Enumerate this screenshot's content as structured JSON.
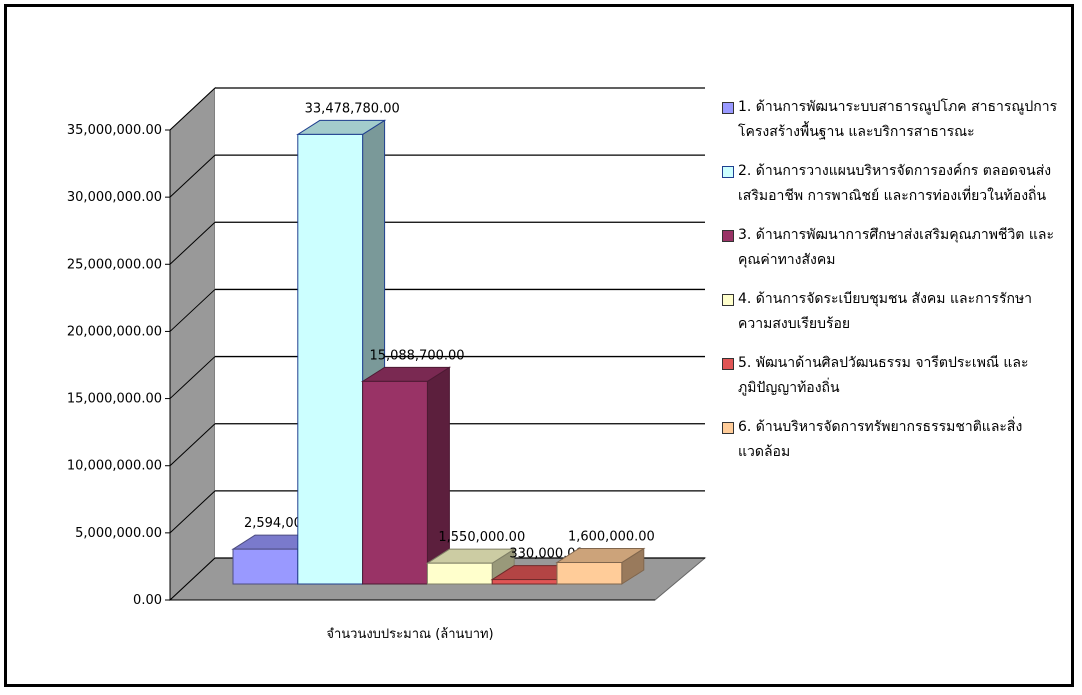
{
  "chart_data": {
    "type": "bar3d",
    "categories": [
      "จำนวนงบประมาณ (ล้านบาท)"
    ],
    "series": [
      {
        "name": "1. ด้านการพัฒนาระบบสาธารณูปโภค สาธารณูปการ โครงสร้างพื้นฐาน และบริการสาธารณะ",
        "color": "#9999ff",
        "values": [
          2594000
        ],
        "value_labels": [
          "2,594,000.00"
        ]
      },
      {
        "name": "2. ด้านการวางแผนบริหารจัดการองค์กร ตลอดจนส่งเสริมอาชีพ การพาณิชย์ และการท่องเที่ยวในท้องถิ่น",
        "color": "#ccffff",
        "values": [
          33478780
        ],
        "value_labels": [
          "33,478,780.00"
        ]
      },
      {
        "name": "3. ด้านการพัฒนาการศึกษาส่งเสริมคุณภาพชีวิต และคุณค่าทางสังคม",
        "color": "#993366",
        "values": [
          15088700
        ],
        "value_labels": [
          "15,088,700.00"
        ]
      },
      {
        "name": "4. ด้านการจัดระเบียบชุมชน สังคม และการรักษาความสงบเรียบร้อย",
        "color": "#ffffcc",
        "values": [
          1550000
        ],
        "value_labels": [
          "1,550,000.00"
        ]
      },
      {
        "name": "5. พัฒนาด้านศิลปวัฒนธรรม จารีตประเพณี และภูมิปัญญาท้องถิ่น",
        "color": "#e05555",
        "values": [
          330000
        ],
        "value_labels": [
          "330,000.00"
        ]
      },
      {
        "name": "6. ด้านบริหารจัดการทรัพยากรธรรมชาติและสิ่งแวดล้อม",
        "color": "#ffcc99",
        "values": [
          1600000
        ],
        "value_labels": [
          "1,600,000.00"
        ]
      }
    ],
    "ylim": [
      0,
      35000000
    ],
    "yticks": [
      {
        "value": 0,
        "label": "0.00"
      },
      {
        "value": 5000000,
        "label": "5,000,000.00"
      },
      {
        "value": 10000000,
        "label": "10,000,000.00"
      },
      {
        "value": 15000000,
        "label": "15,000,000.00"
      },
      {
        "value": 20000000,
        "label": "20,000,000.00"
      },
      {
        "value": 25000000,
        "label": "25,000,000.00"
      },
      {
        "value": 30000000,
        "label": "30,000,000.00"
      },
      {
        "value": 35000000,
        "label": "35,000,000.00"
      }
    ],
    "grid": true
  }
}
